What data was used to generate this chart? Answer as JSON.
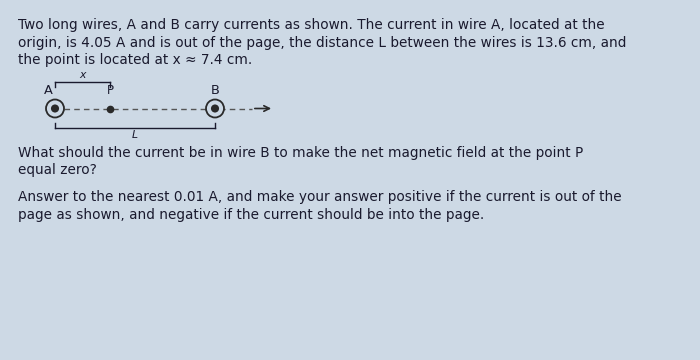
{
  "background_color": "#cdd9e5",
  "text_color": "#1a1a2e",
  "paragraph1_lines": [
    "Two long wires, A and B carry currents as shown. The current in wire A, located at the",
    "origin, is 4.05 A and is out of the page, the distance L between the wires is 13.6 cm, and",
    "the point is located at x ≈ 7.4 cm."
  ],
  "paragraph2_lines": [
    "What should the current be in wire B to make the net magnetic field at the point P",
    "equal zero?"
  ],
  "paragraph3_lines": [
    "Answer to the nearest 0.01 A, and make your answer positive if the current is out of the",
    "page as shown, and negative if the current should be into the page."
  ],
  "label_A": "A",
  "label_P": "P",
  "label_B": "B",
  "label_x": "x",
  "label_L": "L",
  "font_size_body": 9.8,
  "wire_color": "#2a2a2a",
  "dot_color": "#2a2a2a",
  "dash_color": "#555555",
  "circle_fill": "#cdd9e5"
}
